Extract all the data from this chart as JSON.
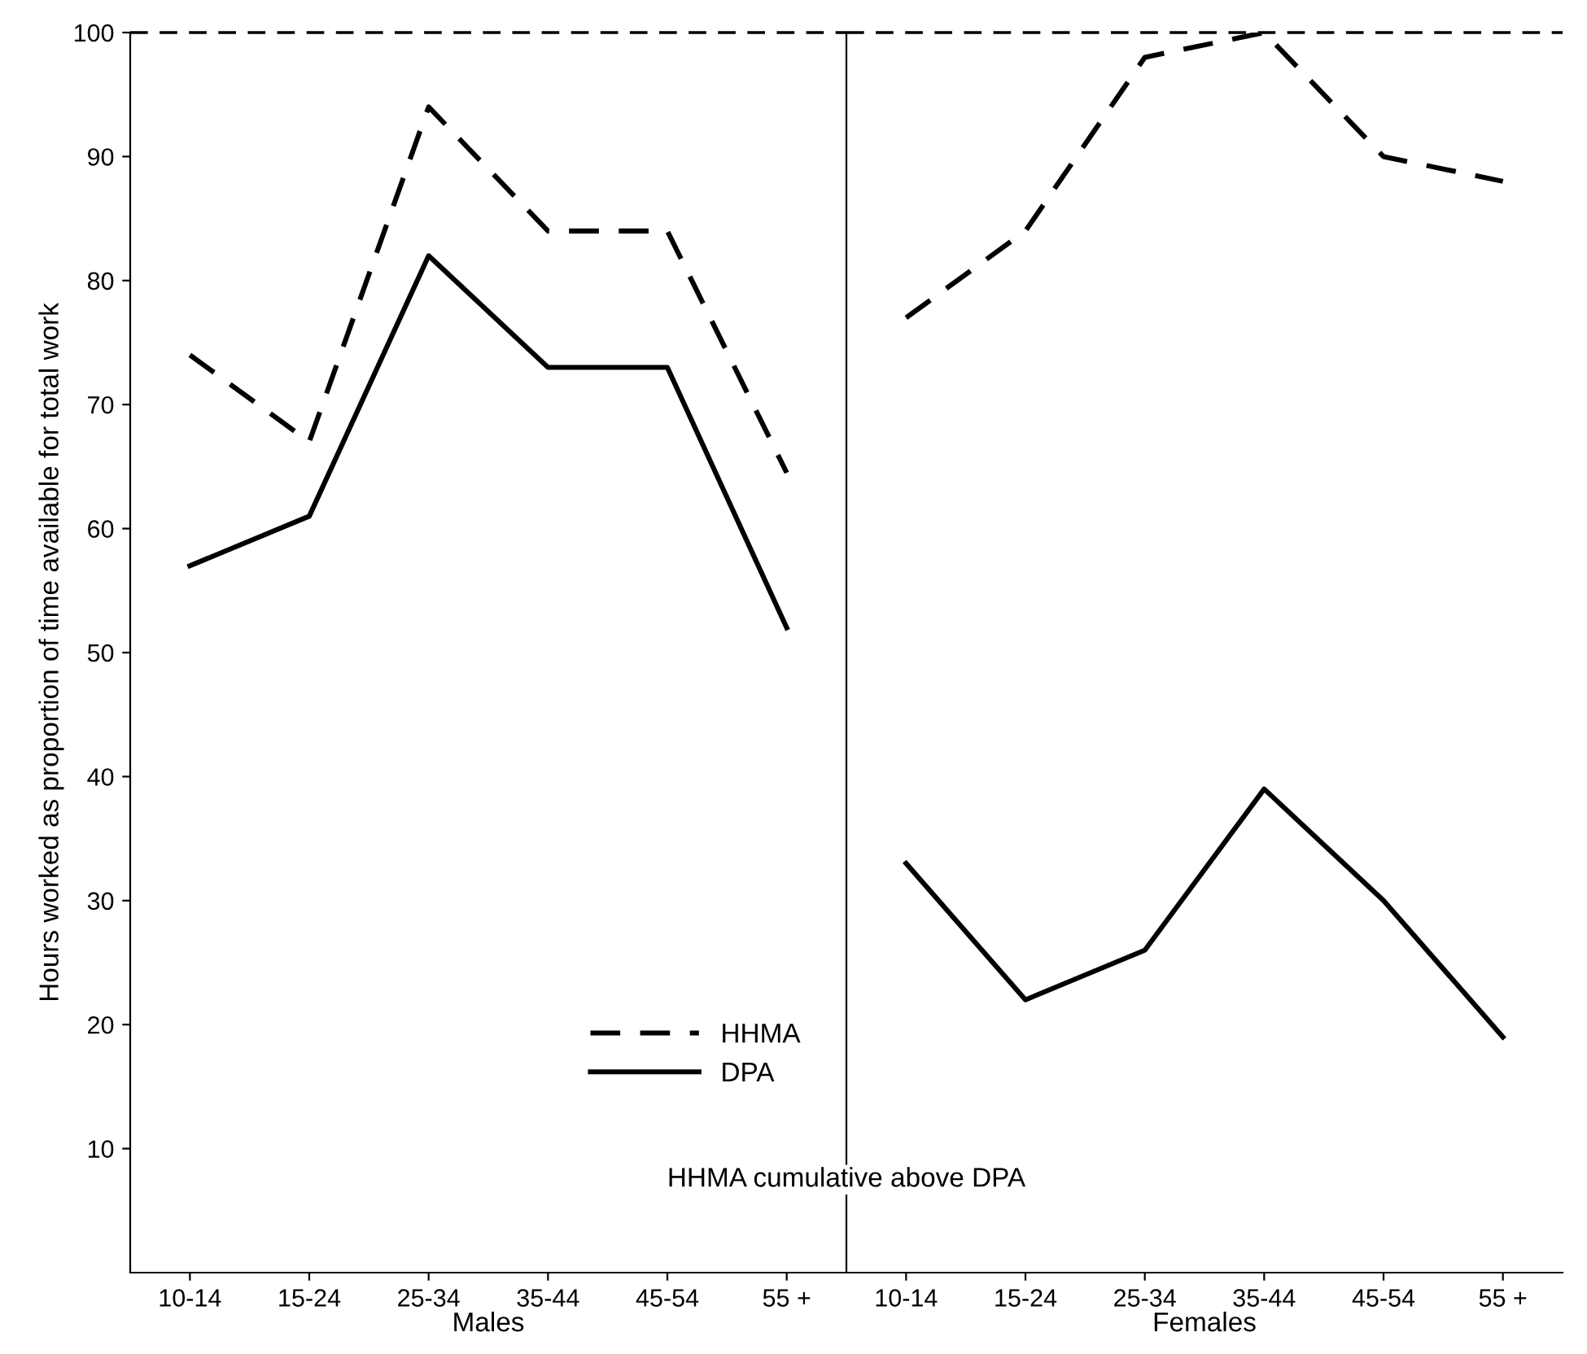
{
  "chart_data": [
    {
      "type": "line",
      "xlabel": "Males",
      "ylabel": "Hours worked as proportion of time available for total work",
      "categories": [
        "10-14",
        "15-24",
        "25-34",
        "35-44",
        "45-54",
        "55 +"
      ],
      "series": [
        {
          "name": "HHMA",
          "color": "#000000",
          "line_style": "dashed",
          "values": [
            74,
            67,
            94,
            84,
            84,
            64.5
          ]
        },
        {
          "name": "DPA",
          "color": "#000000",
          "line_style": "solid",
          "values": [
            57,
            61,
            82,
            73,
            73,
            52
          ]
        }
      ],
      "ylim": [
        0,
        100
      ],
      "yticks": [
        10,
        20,
        30,
        40,
        50,
        60,
        70,
        80,
        90,
        100
      ],
      "ref_lines": [
        {
          "axis": "y",
          "value": 100,
          "line_style": "dashed",
          "color": "#000000"
        }
      ],
      "legend": "bottom right",
      "grid": false,
      "annotations": [
        "HHMA cumulative above DPA"
      ]
    },
    {
      "type": "line",
      "xlabel": "Females",
      "categories": [
        "10-14",
        "15-24",
        "25-34",
        "35-44",
        "45-54",
        "55 +"
      ],
      "series": [
        {
          "color": "#000000",
          "line_style": "dashed",
          "values": [
            77,
            84,
            98,
            100,
            90,
            88
          ]
        },
        {
          "color": "#000000",
          "line_style": "solid",
          "values": [
            33,
            22,
            26,
            39,
            30,
            19
          ]
        }
      ],
      "ylim": [
        0,
        100
      ],
      "yticks": [
        10,
        20,
        30,
        40,
        50,
        60,
        70,
        80,
        90,
        100
      ],
      "ref_lines": [
        {
          "axis": "y",
          "value": 100,
          "line_style": "dashed",
          "color": "#000000"
        }
      ],
      "tick_labels": "x",
      "legend": false,
      "grid": false
    }
  ]
}
